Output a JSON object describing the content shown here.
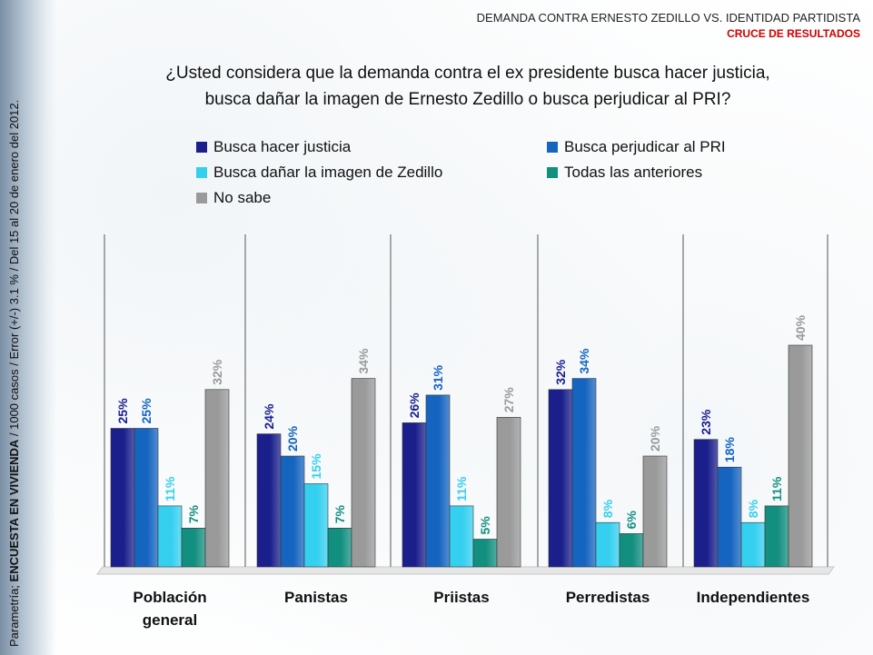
{
  "header": {
    "title": "DEMANDA CONTRA ERNESTO ZEDILLO  VS. IDENTIDAD PARTIDISTA",
    "subtitle": "CRUCE DE RESULTADOS"
  },
  "question": {
    "line1": "¿Usted considera que la demanda contra el ex presidente busca hacer justicia,",
    "line2": "busca dañar la imagen de Ernesto Zedillo o busca perjudicar al PRI?"
  },
  "side_note": {
    "prefix": "Parametría; ",
    "bold": "ENCUESTA EN VIVIENDA",
    "rest": " / 1000 casos / Error (+/-) 3.1 % / Del 15 al 20 de enero del 2012."
  },
  "chart_data": {
    "type": "bar",
    "title": "",
    "categories": [
      "Población general",
      "Panistas",
      "Priistas",
      "Perredistas",
      "Independientes"
    ],
    "series": [
      {
        "name": "Busca hacer justicia",
        "color": "#1a1f8c",
        "values": [
          25,
          24,
          26,
          32,
          23
        ]
      },
      {
        "name": "Busca perjudicar al PRI",
        "color": "#1565c0",
        "values": [
          25,
          20,
          31,
          34,
          18
        ]
      },
      {
        "name": "Busca dañar la imagen de Zedillo",
        "color": "#35d0f0",
        "values": [
          11,
          15,
          11,
          8,
          8
        ]
      },
      {
        "name": "Todas las anteriores",
        "color": "#138f80",
        "values": [
          7,
          7,
          5,
          6,
          11
        ]
      },
      {
        "name": "No sabe",
        "color": "#9a9a9a",
        "values": [
          32,
          34,
          27,
          20,
          40
        ]
      }
    ],
    "label_colors": [
      "#1a1f8c",
      "#1565c0",
      "#35d0f0",
      "#138f80",
      "#9a9a9a"
    ],
    "value_suffix": "%",
    "ylim": [
      0,
      50
    ],
    "grid": false,
    "legend_position": "top"
  }
}
